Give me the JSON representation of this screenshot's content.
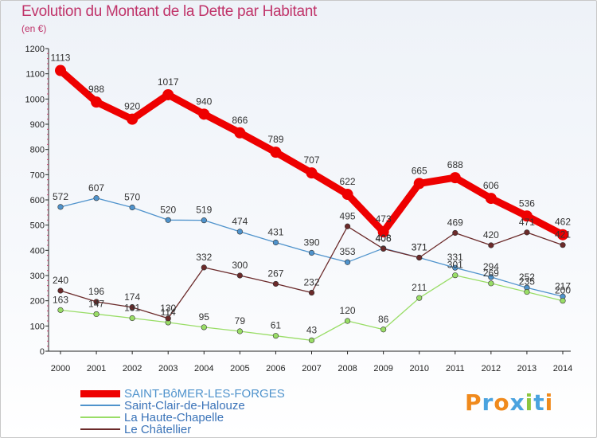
{
  "title": "Evolution du Montant de la Dette par Habitant",
  "unit": "(en €)",
  "logo": {
    "letters": [
      "P",
      "r",
      "o",
      "x",
      "i",
      "t",
      "i"
    ],
    "colors": [
      "#f08a1c",
      "#4aa3df",
      "#f08a1c",
      "#4aa3df",
      "#8dc63f",
      "#4aa3df",
      "#f08a1c"
    ]
  },
  "chart_data": {
    "type": "line",
    "x": [
      "2000",
      "2001",
      "2002",
      "2003",
      "2004",
      "2005",
      "2006",
      "2007",
      "2008",
      "2009",
      "2010",
      "2011",
      "2012",
      "2013",
      "2014"
    ],
    "ylim": [
      0,
      1200
    ],
    "yticks": [
      "0",
      "100",
      "200",
      "300",
      "400",
      "500",
      "600",
      "700",
      "800",
      "900",
      "1000",
      "1100",
      "1200"
    ],
    "grid": false,
    "legend_position": "bottom-left",
    "series": [
      {
        "name": "SAINT-BôMER-LES-FORGES",
        "color": "#ee0000",
        "values": [
          1113,
          988,
          920,
          1017,
          940,
          866,
          789,
          707,
          622,
          473,
          665,
          688,
          606,
          536,
          462
        ],
        "labels": [
          "1113",
          "988",
          "920",
          "1017",
          "940",
          "866",
          "789",
          "707",
          "622",
          "473",
          "665",
          "688",
          "606",
          "536",
          "462"
        ]
      },
      {
        "name": "Saint-Clair-de-Halouze",
        "color": "#4f93cc",
        "values": [
          572,
          607,
          570,
          520,
          519,
          474,
          431,
          390,
          353,
          408,
          371,
          331,
          294,
          252,
          217
        ],
        "labels": [
          "572",
          "607",
          "570",
          "520",
          "519",
          "474",
          "431",
          "390",
          "353",
          "408",
          "371",
          "331",
          "294",
          "252",
          "217"
        ]
      },
      {
        "name": "La Haute-Chapelle",
        "color": "#99dd66",
        "values": [
          163,
          147,
          131,
          114,
          95,
          79,
          61,
          43,
          120,
          86,
          211,
          301,
          269,
          235,
          200
        ],
        "labels": [
          "163",
          "147",
          "131",
          "114",
          "95",
          "79",
          "61",
          "43",
          "120",
          "86",
          "211",
          "301",
          "269",
          "235",
          "200"
        ]
      },
      {
        "name": "Le Châtellier",
        "color": "#6b2a2a",
        "values": [
          240,
          196,
          174,
          130,
          332,
          300,
          267,
          232,
          495,
          406,
          371,
          469,
          420,
          471,
          421
        ],
        "labels": [
          "240",
          "196",
          "174",
          "130",
          "332",
          "300",
          "267",
          "232",
          "495",
          "406",
          "371",
          "469",
          "420",
          "471",
          "421"
        ]
      }
    ]
  }
}
